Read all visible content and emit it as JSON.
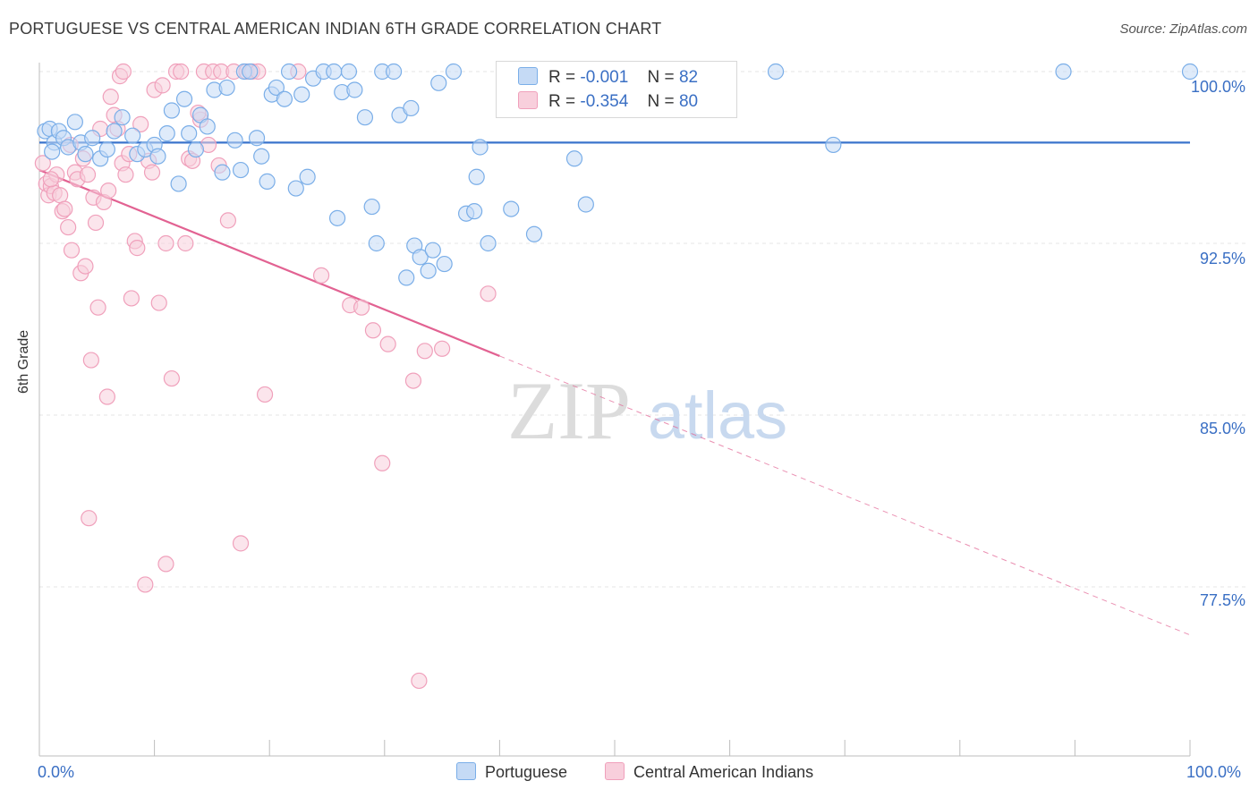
{
  "chart_data": {
    "type": "scatter",
    "title": "PORTUGUESE VS CENTRAL AMERICAN INDIAN 6TH GRADE CORRELATION CHART",
    "source": "Source: ZipAtlas.com",
    "ylabel": "6th Grade",
    "xlabel": "",
    "xlim": [
      0,
      100
    ],
    "ylim": [
      71.2,
      101.0
    ],
    "x_tick_labels": [
      "0.0%",
      "100.0%"
    ],
    "y_ticks": [
      {
        "value": 100.0,
        "label": "100.0%"
      },
      {
        "value": 92.5,
        "label": "92.5%"
      },
      {
        "value": 85.0,
        "label": "85.0%"
      },
      {
        "value": 77.5,
        "label": "77.5%"
      }
    ],
    "watermark": {
      "left": "ZIP",
      "right": "atlas"
    },
    "series": [
      {
        "name": "Portuguese",
        "color": "#7aaee8",
        "fill": "#c5daf5",
        "line_color": "#3a74cc",
        "R": "-0.001",
        "N": "82",
        "trend": {
          "x0": 0,
          "y0": 96.9,
          "x1": 100,
          "y1": 96.9,
          "solid_until": 100
        },
        "points": [
          [
            0.5,
            97.4
          ],
          [
            0.9,
            97.5
          ],
          [
            1.3,
            96.9
          ],
          [
            1.7,
            97.4
          ],
          [
            2.1,
            97.1
          ],
          [
            2.5,
            96.7
          ],
          [
            3.1,
            97.8
          ],
          [
            3.6,
            96.9
          ],
          [
            4.0,
            96.4
          ],
          [
            4.6,
            97.1
          ],
          [
            5.3,
            96.2
          ],
          [
            5.9,
            96.6
          ],
          [
            6.5,
            97.4
          ],
          [
            7.2,
            98.0
          ],
          [
            8.1,
            97.2
          ],
          [
            8.5,
            96.4
          ],
          [
            9.2,
            96.6
          ],
          [
            10.0,
            96.8
          ],
          [
            10.3,
            96.3
          ],
          [
            11.1,
            97.3
          ],
          [
            11.5,
            98.3
          ],
          [
            12.1,
            95.1
          ],
          [
            12.6,
            98.8
          ],
          [
            13.0,
            97.3
          ],
          [
            13.6,
            96.6
          ],
          [
            14.0,
            98.1
          ],
          [
            14.6,
            97.6
          ],
          [
            15.2,
            99.2
          ],
          [
            15.9,
            95.6
          ],
          [
            16.3,
            99.3
          ],
          [
            17.0,
            97.0
          ],
          [
            17.5,
            95.7
          ],
          [
            17.8,
            100.0
          ],
          [
            18.3,
            100.0
          ],
          [
            18.9,
            97.1
          ],
          [
            19.3,
            96.3
          ],
          [
            19.8,
            95.2
          ],
          [
            20.2,
            99.0
          ],
          [
            20.6,
            99.3
          ],
          [
            21.3,
            98.8
          ],
          [
            21.7,
            100.0
          ],
          [
            22.3,
            94.9
          ],
          [
            22.8,
            99.0
          ],
          [
            23.3,
            95.4
          ],
          [
            23.8,
            99.7
          ],
          [
            24.7,
            100.0
          ],
          [
            25.6,
            100.0
          ],
          [
            25.9,
            93.6
          ],
          [
            26.3,
            99.1
          ],
          [
            26.9,
            100.0
          ],
          [
            27.4,
            99.2
          ],
          [
            28.3,
            98.0
          ],
          [
            28.9,
            94.1
          ],
          [
            29.3,
            92.5
          ],
          [
            29.8,
            100.0
          ],
          [
            30.8,
            100.0
          ],
          [
            31.3,
            98.1
          ],
          [
            31.9,
            91.0
          ],
          [
            32.3,
            98.4
          ],
          [
            32.6,
            92.4
          ],
          [
            33.1,
            91.9
          ],
          [
            33.8,
            91.3
          ],
          [
            34.2,
            92.2
          ],
          [
            34.7,
            99.5
          ],
          [
            35.2,
            91.6
          ],
          [
            36.0,
            100.0
          ],
          [
            37.1,
            93.8
          ],
          [
            37.8,
            93.9
          ],
          [
            38.0,
            95.4
          ],
          [
            38.3,
            96.7
          ],
          [
            39.0,
            92.5
          ],
          [
            41.0,
            94.0
          ],
          [
            43.0,
            92.9
          ],
          [
            45.0,
            100.0
          ],
          [
            46.5,
            96.2
          ],
          [
            47.5,
            94.2
          ],
          [
            50.7,
            100.0
          ],
          [
            64.0,
            100.0
          ],
          [
            69.0,
            96.8
          ],
          [
            89.0,
            100.0
          ],
          [
            100.0,
            100.0
          ],
          [
            1.1,
            96.5
          ]
        ]
      },
      {
        "name": "Central American Indians",
        "color": "#f0a0bb",
        "fill": "#f8cfdc",
        "line_color": "#e26292",
        "R": "-0.354",
        "N": "80",
        "trend": {
          "x0": 0,
          "y0": 95.7,
          "x1": 100,
          "y1": 75.4,
          "solid_until": 40
        },
        "points": [
          [
            0.3,
            96.0
          ],
          [
            0.6,
            95.1
          ],
          [
            0.8,
            94.6
          ],
          [
            1.0,
            95.0
          ],
          [
            1.3,
            94.7
          ],
          [
            1.5,
            95.5
          ],
          [
            1.8,
            94.6
          ],
          [
            2.0,
            93.9
          ],
          [
            2.2,
            94.0
          ],
          [
            2.5,
            93.2
          ],
          [
            2.8,
            92.2
          ],
          [
            3.1,
            95.6
          ],
          [
            3.3,
            95.3
          ],
          [
            3.6,
            91.2
          ],
          [
            3.8,
            96.2
          ],
          [
            4.0,
            91.5
          ],
          [
            4.2,
            95.5
          ],
          [
            4.5,
            87.4
          ],
          [
            4.7,
            94.5
          ],
          [
            4.9,
            93.4
          ],
          [
            5.1,
            89.7
          ],
          [
            5.3,
            97.5
          ],
          [
            5.6,
            94.3
          ],
          [
            5.9,
            85.8
          ],
          [
            6.2,
            98.9
          ],
          [
            6.5,
            98.1
          ],
          [
            6.8,
            97.5
          ],
          [
            7.0,
            99.8
          ],
          [
            7.2,
            96.0
          ],
          [
            7.5,
            95.5
          ],
          [
            7.8,
            96.4
          ],
          [
            8.0,
            90.1
          ],
          [
            8.3,
            92.6
          ],
          [
            8.5,
            92.3
          ],
          [
            8.8,
            97.7
          ],
          [
            9.2,
            77.6
          ],
          [
            9.5,
            96.1
          ],
          [
            9.8,
            95.6
          ],
          [
            10.0,
            99.2
          ],
          [
            10.4,
            89.9
          ],
          [
            10.7,
            99.4
          ],
          [
            11.0,
            92.5
          ],
          [
            11.5,
            86.6
          ],
          [
            11.9,
            100.0
          ],
          [
            12.3,
            100.0
          ],
          [
            12.7,
            92.5
          ],
          [
            13.0,
            96.2
          ],
          [
            13.3,
            96.1
          ],
          [
            14.0,
            97.9
          ],
          [
            14.3,
            100.0
          ],
          [
            14.7,
            96.8
          ],
          [
            15.1,
            100.0
          ],
          [
            15.6,
            95.9
          ],
          [
            15.8,
            100.0
          ],
          [
            16.4,
            93.5
          ],
          [
            16.9,
            100.0
          ],
          [
            17.5,
            79.4
          ],
          [
            18.0,
            100.0
          ],
          [
            18.5,
            100.0
          ],
          [
            19.0,
            100.0
          ],
          [
            19.6,
            85.9
          ],
          [
            22.5,
            100.0
          ],
          [
            24.5,
            91.1
          ],
          [
            27.0,
            89.8
          ],
          [
            28.0,
            89.7
          ],
          [
            29.0,
            88.7
          ],
          [
            29.8,
            82.9
          ],
          [
            30.3,
            88.1
          ],
          [
            32.5,
            86.5
          ],
          [
            33.0,
            73.4
          ],
          [
            33.5,
            87.8
          ],
          [
            35.0,
            87.9
          ],
          [
            39.0,
            90.3
          ],
          [
            4.3,
            80.5
          ],
          [
            11.0,
            78.5
          ],
          [
            1.0,
            95.3
          ],
          [
            2.7,
            96.8
          ],
          [
            6.0,
            94.8
          ],
          [
            13.8,
            98.2
          ],
          [
            7.3,
            100.0
          ]
        ]
      }
    ]
  },
  "legend": {
    "rows": [
      {
        "r_label": "R =",
        "r_value": "-0.001",
        "n_label": "N =",
        "n_value": "82"
      },
      {
        "r_label": "R =",
        "r_value": "-0.354",
        "n_label": "N =",
        "n_value": "80"
      }
    ]
  }
}
